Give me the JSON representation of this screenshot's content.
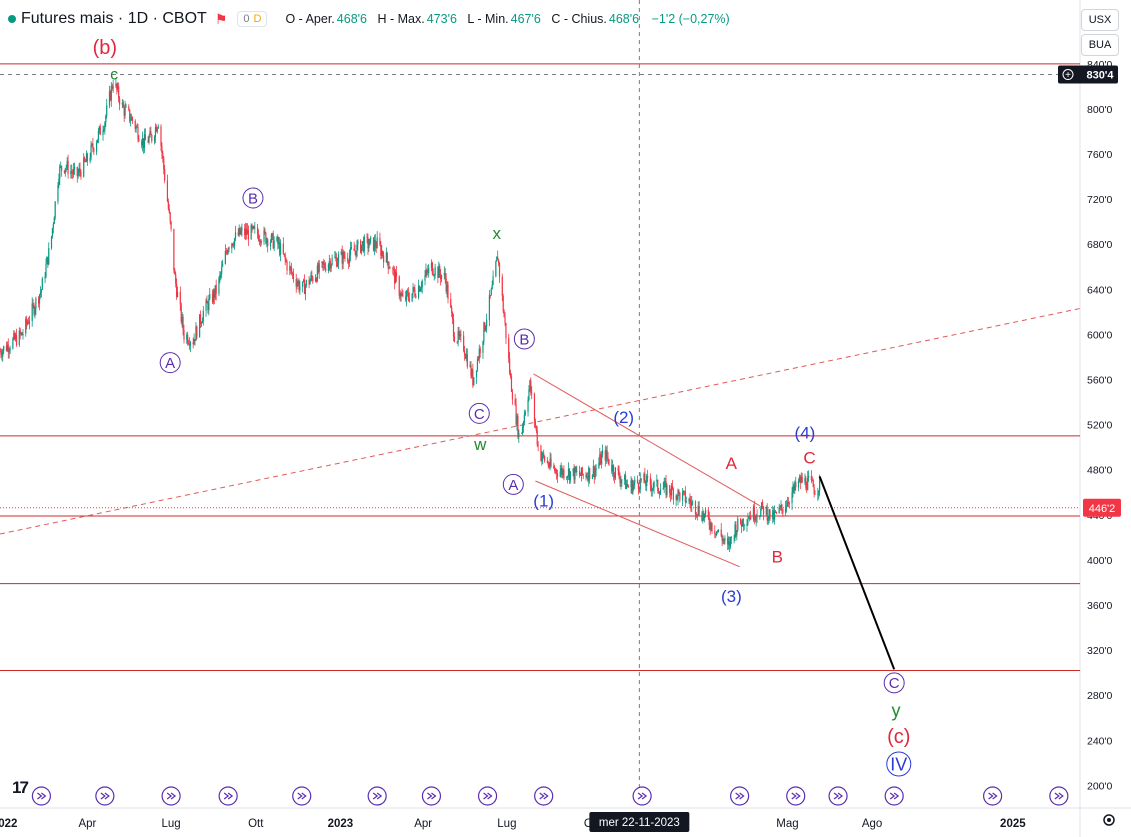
{
  "header": {
    "symbol": "Futures mais · 1D · CBOT",
    "pill_a": "0",
    "pill_b": "D",
    "o_label": "O - Aper.",
    "o_val": "468'6",
    "h_label": "H - Max.",
    "h_val": "473'6",
    "l_label": "L - Min.",
    "l_val": "467'6",
    "c_label": "C - Chius.",
    "c_val": "468'6",
    "change": "−1'2 (−0,27%)"
  },
  "currency": "USX",
  "unit": "BUA",
  "colors": {
    "up": "#089981",
    "down": "#f23645",
    "level": "#cc2a2a",
    "trend": "#e05a5a",
    "wave_blue": "#2a3bd6",
    "wave_purple": "#5b2db0",
    "wave_red": "#e0283a",
    "wave_green": "#1f8a2e",
    "projection": "#000000"
  },
  "chart_data": {
    "type": "candlestick",
    "y_axis": {
      "min": 180,
      "max": 870,
      "ticks": [
        "200'0",
        "240'0",
        "280'0",
        "320'0",
        "360'0",
        "400'0",
        "440'0",
        "480'0",
        "520'0",
        "560'0",
        "600'0",
        "640'0",
        "680'0",
        "720'0",
        "760'0",
        "800'0",
        "840'0"
      ],
      "tick_values": [
        200,
        240,
        280,
        320,
        360,
        400,
        440,
        480,
        520,
        560,
        600,
        640,
        680,
        720,
        760,
        800,
        840
      ]
    },
    "x_axis": {
      "start": "2021-12-27",
      "end": "2025-03-15",
      "ticks": [
        {
          "label": "2022",
          "date": "2022-01-01",
          "bold": true
        },
        {
          "label": "Apr",
          "date": "2022-04-01"
        },
        {
          "label": "Lug",
          "date": "2022-07-01"
        },
        {
          "label": "Ott",
          "date": "2022-10-01"
        },
        {
          "label": "2023",
          "date": "2023-01-01",
          "bold": true
        },
        {
          "label": "Apr",
          "date": "2023-04-01"
        },
        {
          "label": "Lug",
          "date": "2023-07-01"
        },
        {
          "label": "Ott",
          "date": "2023-10-01"
        },
        {
          "label": "Mag",
          "date": "2024-05-01"
        },
        {
          "label": "Ago",
          "date": "2024-08-01"
        },
        {
          "label": "2025",
          "date": "2025-01-01",
          "bold": true
        }
      ]
    },
    "price_path": [
      [
        "2021-12-27",
        585
      ],
      [
        "2022-01-20",
        600
      ],
      [
        "2022-02-10",
        640
      ],
      [
        "2022-02-20",
        680
      ],
      [
        "2022-03-01",
        745
      ],
      [
        "2022-03-08",
        750
      ],
      [
        "2022-03-20",
        740
      ],
      [
        "2022-04-01",
        755
      ],
      [
        "2022-04-20",
        790
      ],
      [
        "2022-04-29",
        825
      ],
      [
        "2022-05-10",
        800
      ],
      [
        "2022-05-20",
        790
      ],
      [
        "2022-06-01",
        770
      ],
      [
        "2022-06-10",
        775
      ],
      [
        "2022-06-17",
        790
      ],
      [
        "2022-06-24",
        740
      ],
      [
        "2022-07-01",
        690
      ],
      [
        "2022-07-05",
        650
      ],
      [
        "2022-07-15",
        600
      ],
      [
        "2022-07-25",
        595
      ],
      [
        "2022-08-05",
        620
      ],
      [
        "2022-08-20",
        640
      ],
      [
        "2022-09-01",
        680
      ],
      [
        "2022-09-15",
        690
      ],
      [
        "2022-10-01",
        690
      ],
      [
        "2022-10-15",
        685
      ],
      [
        "2022-10-25",
        680
      ],
      [
        "2022-11-05",
        660
      ],
      [
        "2022-11-20",
        640
      ],
      [
        "2022-12-01",
        650
      ],
      [
        "2022-12-20",
        665
      ],
      [
        "2023-01-10",
        670
      ],
      [
        "2023-01-25",
        680
      ],
      [
        "2023-02-10",
        680
      ],
      [
        "2023-02-25",
        660
      ],
      [
        "2023-03-10",
        630
      ],
      [
        "2023-03-25",
        640
      ],
      [
        "2023-04-10",
        660
      ],
      [
        "2023-04-25",
        650
      ],
      [
        "2023-05-05",
        600
      ],
      [
        "2023-05-15",
        590
      ],
      [
        "2023-05-25",
        560
      ],
      [
        "2023-06-05",
        600
      ],
      [
        "2023-06-15",
        640
      ],
      [
        "2023-06-21",
        670
      ],
      [
        "2023-06-30",
        600
      ],
      [
        "2023-07-05",
        560
      ],
      [
        "2023-07-15",
        505
      ],
      [
        "2023-07-22",
        540
      ],
      [
        "2023-07-26",
        555
      ],
      [
        "2023-08-05",
        495
      ],
      [
        "2023-08-20",
        480
      ],
      [
        "2023-09-05",
        478
      ],
      [
        "2023-09-20",
        475
      ],
      [
        "2023-10-05",
        480
      ],
      [
        "2023-10-15",
        495
      ],
      [
        "2023-10-25",
        480
      ],
      [
        "2023-11-10",
        465
      ],
      [
        "2023-11-25",
        470
      ],
      [
        "2023-12-10",
        465
      ],
      [
        "2023-12-25",
        462
      ],
      [
        "2024-01-10",
        455
      ],
      [
        "2024-01-25",
        445
      ],
      [
        "2024-02-10",
        430
      ],
      [
        "2024-02-20",
        420
      ],
      [
        "2024-02-26",
        410
      ],
      [
        "2024-03-05",
        428
      ],
      [
        "2024-03-20",
        440
      ],
      [
        "2024-04-05",
        445
      ],
      [
        "2024-04-15",
        437
      ],
      [
        "2024-04-25",
        445
      ],
      [
        "2024-05-05",
        458
      ],
      [
        "2024-05-15",
        470
      ],
      [
        "2024-05-25",
        468
      ],
      [
        "2024-06-01",
        462
      ],
      [
        "2024-06-05",
        468
      ]
    ],
    "levels": [
      840,
      510,
      439,
      379,
      302
    ],
    "last_price": "446'2",
    "crosshair": {
      "date": "2023-11-22",
      "price": 830.5,
      "date_label": "mer 22-11-2023",
      "price_label": "830'4"
    },
    "trend_lines": [
      {
        "style": "dashed",
        "from": [
          "2021-12-27",
          423
        ],
        "to": [
          "2025-03-15",
          623
        ]
      },
      {
        "style": "solid",
        "from": [
          "2023-07-30",
          565
        ],
        "to": [
          "2024-04-01",
          448
        ]
      },
      {
        "style": "solid",
        "from": [
          "2023-08-01",
          470
        ],
        "to": [
          "2024-03-10",
          394
        ]
      }
    ],
    "projection": {
      "from": [
        "2024-06-05",
        474
      ],
      "to": [
        "2024-08-25",
        303
      ]
    },
    "wave_labels": [
      {
        "text": "(b)",
        "date": "2022-04-20",
        "price": 855,
        "color": "red",
        "size": 20
      },
      {
        "text": "c",
        "date": "2022-04-30",
        "price": 831,
        "color": "green",
        "size": 16
      },
      {
        "text": "A",
        "date": "2022-06-30",
        "price": 575,
        "color": "purple",
        "circle": true
      },
      {
        "text": "B",
        "date": "2022-09-28",
        "price": 721,
        "color": "purple",
        "circle": true
      },
      {
        "text": "x",
        "date": "2023-06-20",
        "price": 690,
        "color": "green",
        "size": 17
      },
      {
        "text": "B",
        "date": "2023-07-20",
        "price": 596,
        "color": "purple",
        "circle": true
      },
      {
        "text": "C",
        "date": "2023-06-01",
        "price": 530,
        "color": "purple",
        "circle": true
      },
      {
        "text": "w",
        "date": "2023-06-02",
        "price": 503,
        "color": "green",
        "size": 17
      },
      {
        "text": "A",
        "date": "2023-07-08",
        "price": 467,
        "color": "purple",
        "circle": true
      },
      {
        "text": "(1)",
        "date": "2023-08-10",
        "price": 453,
        "color": "blue",
        "size": 17
      },
      {
        "text": "(2)",
        "date": "2023-11-05",
        "price": 527,
        "color": "blue",
        "size": 17
      },
      {
        "text": "A",
        "date": "2024-03-01",
        "price": 486,
        "color": "red",
        "size": 17
      },
      {
        "text": "(3)",
        "date": "2024-03-01",
        "price": 368,
        "color": "blue",
        "size": 17
      },
      {
        "text": "B",
        "date": "2024-04-20",
        "price": 403,
        "color": "red",
        "size": 17
      },
      {
        "text": "(4)",
        "date": "2024-05-20",
        "price": 513,
        "color": "blue",
        "size": 17
      },
      {
        "text": "C",
        "date": "2024-05-25",
        "price": 491,
        "color": "red",
        "size": 17
      },
      {
        "text": "C",
        "date": "2024-08-25",
        "price": 291,
        "color": "purple",
        "circle": true
      },
      {
        "text": "y",
        "date": "2024-08-27",
        "price": 267,
        "color": "green",
        "size": 18
      },
      {
        "text": "(c)",
        "date": "2024-08-30",
        "price": 244,
        "color": "red",
        "size": 20
      },
      {
        "text": "IV",
        "date": "2024-08-30",
        "price": 219,
        "color": "blue",
        "circle": true,
        "size": 18
      }
    ],
    "event_icons": [
      "2022-02-10",
      "2022-04-20",
      "2022-07-01",
      "2022-09-01",
      "2022-11-20",
      "2023-02-10",
      "2023-04-10",
      "2023-06-10",
      "2023-08-10",
      "2023-11-25",
      "2024-03-10",
      "2024-05-10",
      "2024-06-25",
      "2024-08-25",
      "2024-12-10",
      "2025-02-20"
    ]
  }
}
